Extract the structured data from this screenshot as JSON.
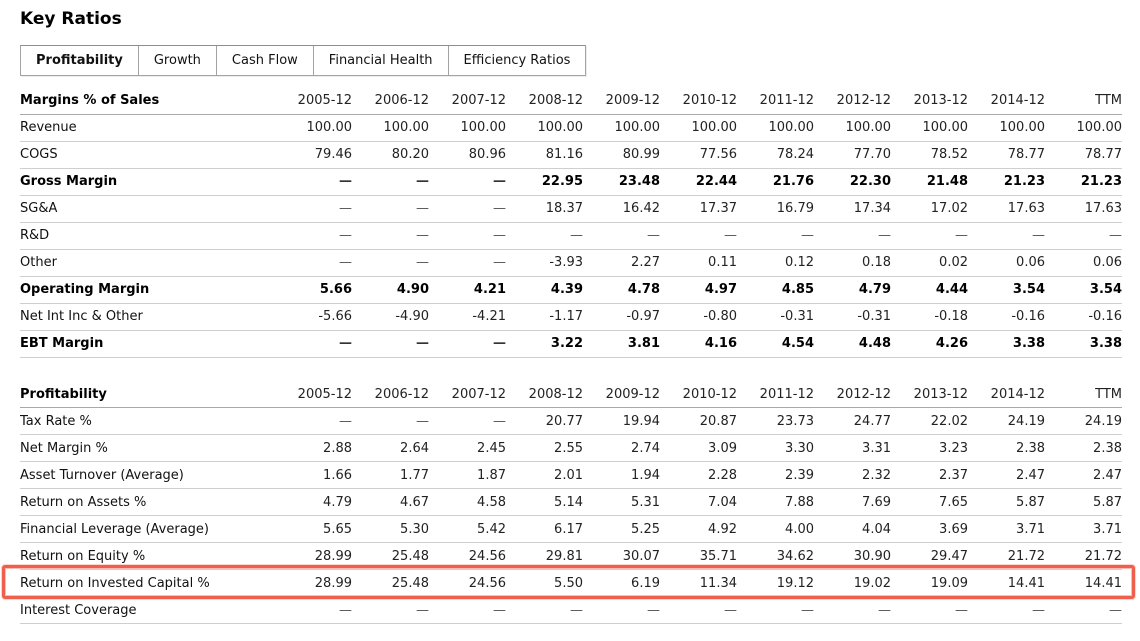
{
  "page_title": "Key Ratios",
  "tabs": [
    {
      "label": "Profitability",
      "active": true
    },
    {
      "label": "Growth",
      "active": false
    },
    {
      "label": "Cash Flow",
      "active": false
    },
    {
      "label": "Financial Health",
      "active": false
    },
    {
      "label": "Efficiency Ratios",
      "active": false
    }
  ],
  "columns": [
    "2005-12",
    "2006-12",
    "2007-12",
    "2008-12",
    "2009-12",
    "2010-12",
    "2011-12",
    "2012-12",
    "2013-12",
    "2014-12",
    "TTM"
  ],
  "accent": {
    "highlight_border": "#ee5f4c"
  },
  "highlighted_row": "Return on Invested Capital %",
  "sections": [
    {
      "title": "Margins % of Sales",
      "rows": [
        {
          "label": "Revenue",
          "bold": false,
          "values": [
            "100.00",
            "100.00",
            "100.00",
            "100.00",
            "100.00",
            "100.00",
            "100.00",
            "100.00",
            "100.00",
            "100.00",
            "100.00"
          ]
        },
        {
          "label": "COGS",
          "bold": false,
          "values": [
            "79.46",
            "80.20",
            "80.96",
            "81.16",
            "80.99",
            "77.56",
            "78.24",
            "77.70",
            "78.52",
            "78.77",
            "78.77"
          ]
        },
        {
          "label": "Gross Margin",
          "bold": true,
          "values": [
            "—",
            "—",
            "—",
            "22.95",
            "23.48",
            "22.44",
            "21.76",
            "22.30",
            "21.48",
            "21.23",
            "21.23"
          ]
        },
        {
          "label": "SG&A",
          "bold": false,
          "values": [
            "—",
            "—",
            "—",
            "18.37",
            "16.42",
            "17.37",
            "16.79",
            "17.34",
            "17.02",
            "17.63",
            "17.63"
          ]
        },
        {
          "label": "R&D",
          "bold": false,
          "values": [
            "—",
            "—",
            "—",
            "—",
            "—",
            "—",
            "—",
            "—",
            "—",
            "—",
            "—"
          ]
        },
        {
          "label": "Other",
          "bold": false,
          "values": [
            "—",
            "—",
            "—",
            "-3.93",
            "2.27",
            "0.11",
            "0.12",
            "0.18",
            "0.02",
            "0.06",
            "0.06"
          ]
        },
        {
          "label": "Operating Margin",
          "bold": true,
          "values": [
            "5.66",
            "4.90",
            "4.21",
            "4.39",
            "4.78",
            "4.97",
            "4.85",
            "4.79",
            "4.44",
            "3.54",
            "3.54"
          ]
        },
        {
          "label": "Net Int Inc & Other",
          "bold": false,
          "values": [
            "-5.66",
            "-4.90",
            "-4.21",
            "-1.17",
            "-0.97",
            "-0.80",
            "-0.31",
            "-0.31",
            "-0.18",
            "-0.16",
            "-0.16"
          ]
        },
        {
          "label": "EBT Margin",
          "bold": true,
          "values": [
            "—",
            "—",
            "—",
            "3.22",
            "3.81",
            "4.16",
            "4.54",
            "4.48",
            "4.26",
            "3.38",
            "3.38"
          ]
        }
      ]
    },
    {
      "title": "Profitability",
      "rows": [
        {
          "label": "Tax Rate %",
          "bold": false,
          "values": [
            "—",
            "—",
            "—",
            "20.77",
            "19.94",
            "20.87",
            "23.73",
            "24.77",
            "22.02",
            "24.19",
            "24.19"
          ]
        },
        {
          "label": "Net Margin %",
          "bold": false,
          "values": [
            "2.88",
            "2.64",
            "2.45",
            "2.55",
            "2.74",
            "3.09",
            "3.30",
            "3.31",
            "3.23",
            "2.38",
            "2.38"
          ]
        },
        {
          "label": "Asset Turnover (Average)",
          "bold": false,
          "values": [
            "1.66",
            "1.77",
            "1.87",
            "2.01",
            "1.94",
            "2.28",
            "2.39",
            "2.32",
            "2.37",
            "2.47",
            "2.47"
          ]
        },
        {
          "label": "Return on Assets %",
          "bold": false,
          "values": [
            "4.79",
            "4.67",
            "4.58",
            "5.14",
            "5.31",
            "7.04",
            "7.88",
            "7.69",
            "7.65",
            "5.87",
            "5.87"
          ]
        },
        {
          "label": "Financial Leverage (Average)",
          "bold": false,
          "values": [
            "5.65",
            "5.30",
            "5.42",
            "6.17",
            "5.25",
            "4.92",
            "4.00",
            "4.04",
            "3.69",
            "3.71",
            "3.71"
          ]
        },
        {
          "label": "Return on Equity %",
          "bold": false,
          "values": [
            "28.99",
            "25.48",
            "24.56",
            "29.81",
            "30.07",
            "35.71",
            "34.62",
            "30.90",
            "29.47",
            "21.72",
            "21.72"
          ]
        },
        {
          "label": "Return on Invested Capital %",
          "bold": false,
          "highlighted": true,
          "values": [
            "28.99",
            "25.48",
            "24.56",
            "5.50",
            "6.19",
            "11.34",
            "19.12",
            "19.02",
            "19.09",
            "14.41",
            "14.41"
          ]
        },
        {
          "label": "Interest Coverage",
          "bold": false,
          "values": [
            "—",
            "—",
            "—",
            "—",
            "—",
            "—",
            "—",
            "—",
            "—",
            "—",
            "—"
          ]
        }
      ]
    }
  ]
}
